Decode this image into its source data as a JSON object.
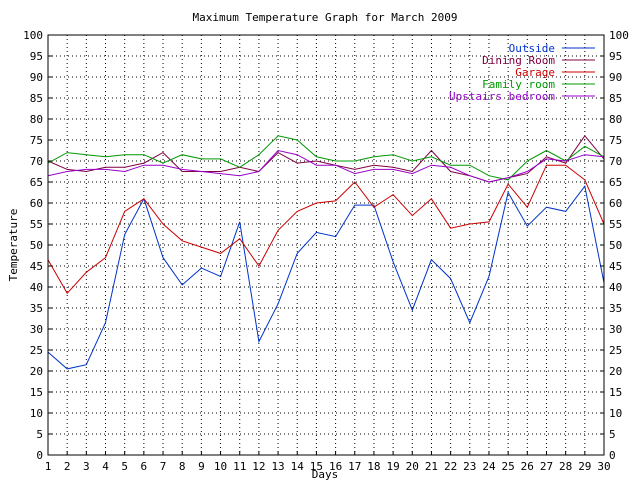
{
  "chart_data": {
    "type": "line",
    "title": "Maximum Temperature Graph for March 2009",
    "xlabel": "Days",
    "ylabel": "Temperature",
    "xlim": [
      1,
      30
    ],
    "ylim": [
      0,
      100
    ],
    "ytick_step": 5,
    "grid": true,
    "legend_position": "top-right",
    "x": [
      1,
      2,
      3,
      4,
      5,
      6,
      7,
      8,
      9,
      10,
      11,
      12,
      13,
      14,
      15,
      16,
      17,
      18,
      19,
      20,
      21,
      22,
      23,
      24,
      25,
      26,
      27,
      28,
      29,
      30
    ],
    "series": [
      {
        "name": "Outside",
        "color": "#0033cc",
        "values": [
          24.5,
          20.5,
          21.5,
          31.5,
          52.5,
          61,
          47,
          40.5,
          44.5,
          42.5,
          55.5,
          27,
          36,
          48,
          53,
          52,
          59.5,
          59.5,
          46,
          34.5,
          46.5,
          42,
          31.5,
          42.5,
          62.5,
          54.5,
          59,
          58,
          64,
          41
        ]
      },
      {
        "name": "Dining Room",
        "color": "#800040",
        "values": [
          70,
          68,
          67.5,
          68.5,
          68.5,
          69.5,
          72,
          67.5,
          67.5,
          67.5,
          68.5,
          67.5,
          72,
          69.5,
          70,
          69,
          68,
          69,
          68.5,
          67.5,
          72.5,
          67.5,
          66.5,
          65,
          66,
          67,
          71,
          69.5,
          76,
          70.5
        ]
      },
      {
        "name": "Garage",
        "color": "#cc0000",
        "values": [
          46.5,
          38.5,
          43.5,
          47,
          58,
          61,
          55,
          51,
          49.5,
          48,
          51.5,
          45,
          53.5,
          58,
          60,
          60.5,
          65,
          59,
          62,
          57,
          61,
          54,
          55,
          55.5,
          64.5,
          59,
          69,
          69,
          65.5,
          55
        ]
      },
      {
        "name": "Family room",
        "color": "#009900",
        "values": [
          69.5,
          72,
          71.5,
          71,
          71.5,
          71.5,
          69.5,
          71.5,
          70.5,
          70.5,
          68.5,
          71.5,
          76,
          75,
          71,
          70,
          70,
          71,
          71.5,
          70,
          71,
          69,
          69,
          66.5,
          65.5,
          70,
          72.5,
          70,
          73.5,
          71
        ]
      },
      {
        "name": "Upstairs bedroom",
        "color": "#9900cc",
        "values": [
          66.5,
          67.5,
          68,
          68,
          67.5,
          69,
          69,
          68,
          67.5,
          67,
          66.5,
          67.5,
          72.5,
          71.5,
          69,
          69,
          67,
          68,
          68,
          67,
          69,
          68.5,
          66.5,
          65,
          66,
          67.5,
          70.5,
          70,
          71.5,
          71
        ]
      }
    ]
  }
}
